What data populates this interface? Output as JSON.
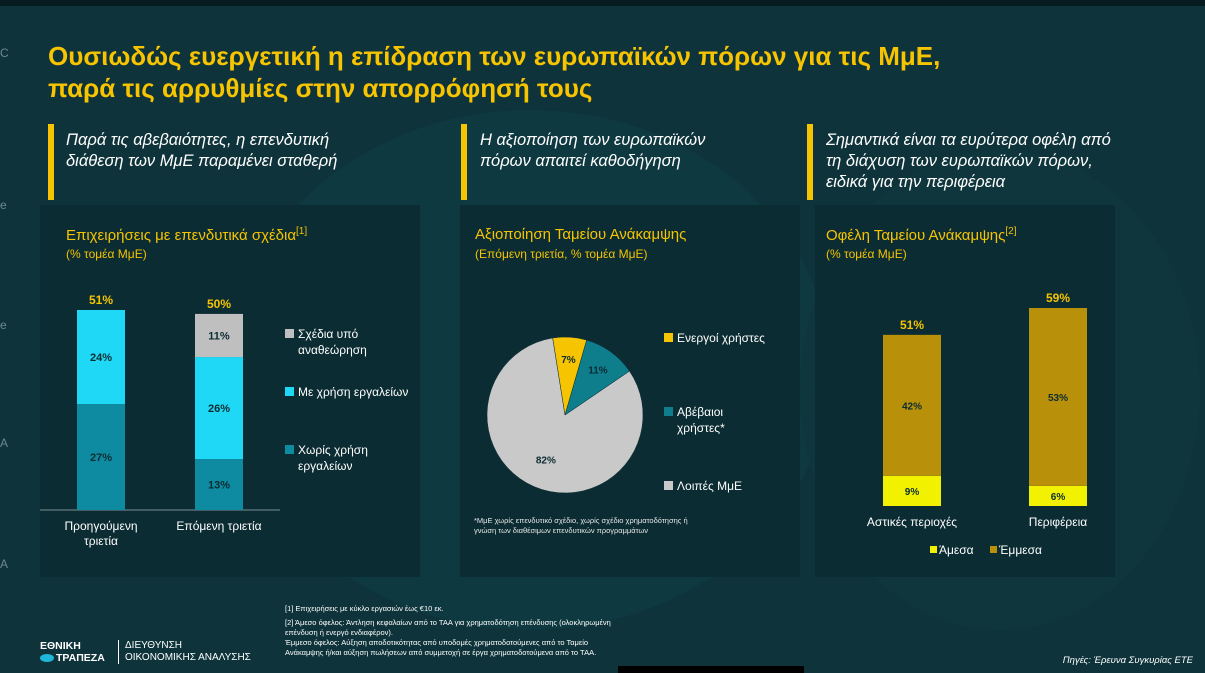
{
  "title": {
    "line1": "Ουσιωδώς ευεργετική η επίδραση των ευρωπαϊκών πόρων για τις ΜμΕ,",
    "line2": "παρά τις αρρυθμίες στην απορρόφησή τους"
  },
  "panels": [
    {
      "subtitle_line1": "Παρά τις αβεβαιότητες, η επενδυτική",
      "subtitle_line2": "διάθεση των ΜμΕ παραμένει σταθερή",
      "subtitle_line3": ""
    },
    {
      "subtitle_line1": "Η αξιοποίηση των ευρωπαϊκών",
      "subtitle_line2": "πόρων απαιτεί καθοδήγηση",
      "subtitle_line3": ""
    },
    {
      "subtitle_line1": "Σημαντικά είναι τα ευρύτερα οφέλη από",
      "subtitle_line2": "τη  διάχυση των ευρωπαϊκών πόρων,",
      "subtitle_line3": "ειδικά για την περιφέρεια"
    }
  ],
  "chart_data": [
    {
      "type": "bar",
      "stacked": true,
      "title": "Επιχειρήσεις με επενδυτικά σχέδια",
      "title_sup": "[1]",
      "unit": "(% τομέα ΜμΕ)",
      "categories": [
        "Προηγούμενη τριετία",
        "Επόμενη τριετία"
      ],
      "category_lines": [
        [
          "Προηγούμενη",
          "τριετία"
        ],
        [
          "Επόμενη τριετία"
        ]
      ],
      "totals": [
        51,
        50
      ],
      "total_labels": [
        "51%",
        "50%"
      ],
      "series": [
        {
          "name": "Χωρίς χρήση εργαλείων",
          "legend_lines": [
            "Χωρίς χρήση",
            "εργαλείων"
          ],
          "values": [
            27,
            13
          ],
          "labels": [
            "27%",
            "13%"
          ],
          "color": "#0e8ba1"
        },
        {
          "name": "Με χρήση εργαλείων",
          "legend_lines": [
            "Με χρήση εργαλείων"
          ],
          "values": [
            24,
            26
          ],
          "labels": [
            "24%",
            "26%"
          ],
          "color": "#1fd8f5"
        },
        {
          "name": "Σχέδια υπό αναθεώρηση",
          "legend_lines": [
            "Σχέδια υπό",
            "αναθεώρηση"
          ],
          "values": [
            0,
            11
          ],
          "labels": [
            "",
            "11%"
          ],
          "color": "#bfbfbf"
        }
      ],
      "ylim": [
        0,
        55
      ]
    },
    {
      "type": "pie",
      "title": "Αξιοποίηση Ταμείου Ανάκαμψης",
      "unit": "(Επόμενη τριετία, % τομέα ΜμΕ)",
      "slices": [
        {
          "name": "Ενεργοί χρήστες",
          "legend_lines": [
            "Ενεργοί χρήστες"
          ],
          "value": 7,
          "label": "7%",
          "color": "#f6c400"
        },
        {
          "name": "Αβέβαιοι χρήστες*",
          "legend_lines": [
            "Αβέβαιοι",
            "χρήστες*"
          ],
          "value": 11,
          "label": "11%",
          "color": "#0e7d8c"
        },
        {
          "name": "Λοιπές ΜμΕ",
          "legend_lines": [
            "Λοιπές ΜμΕ"
          ],
          "value": 82,
          "label": "82%",
          "color": "#c9c9c9"
        }
      ],
      "footnote_line1": "*ΜμΕ χωρίς επενδυτικό σχέδιο, χωρίς σχέδιο χρηματοδότησης ή",
      "footnote_line2": "γνώση των  διαθέσιμων επενδυτικών προγραμμάτων"
    },
    {
      "type": "bar",
      "stacked": true,
      "title": "Οφέλη Ταμείου Ανάκαμψης",
      "title_sup": "[2]",
      "unit": "(% τομέα ΜμΕ)",
      "categories": [
        "Αστικές περιοχές",
        "Περιφέρεια"
      ],
      "totals": [
        51,
        59
      ],
      "total_labels": [
        "51%",
        "59%"
      ],
      "series": [
        {
          "name": "Άμεσα",
          "values": [
            9,
            6
          ],
          "labels": [
            "9%",
            "6%"
          ],
          "color": "#f2f200"
        },
        {
          "name": "Έμμεσα",
          "values": [
            42,
            53
          ],
          "labels": [
            "42%",
            "53%"
          ],
          "color": "#b8900a"
        }
      ],
      "ylim": [
        0,
        62
      ]
    }
  ],
  "footnotes": {
    "f1": "[1]  Επιχειρήσεις με κύκλο εργασιών έως €10 εκ.",
    "f2a": "[2] Άμεσο όφελος: Άντληση κεφαλαίων από το ΤΑΑ για χρηματοδότηση επένδυσης (ολοκληρωμένη",
    "f2b": "επένδυση ή ενεργό ενδιαφέρον).",
    "f2c": "Έμμεσο όφελος: Αύξηση αποδοτικότητας από υποδομές χρηματοδοτούμενες από το Ταμείο",
    "f2d": "Ανάκαμψης ή/και αύξηση πωλήσεων από συμμετοχή σε έργα χρηματοδοτούμενα από το ΤΑΑ."
  },
  "logo": {
    "line1": "ΕΘΝΙΚΗ",
    "line2": "ΤΡΑΠΕΖΑ"
  },
  "dept": {
    "line1": "ΔΙΕΥΘΥΝΣΗ",
    "line2": "ΟΙΚΟΝΟΜΙΚΗΣ ΑΝΑΛΥΣΗΣ"
  },
  "source": "Πηγές: Έρευνα Συγκυρίας ΕΤΕ",
  "edge_glyphs": [
    "C",
    "e",
    "e",
    "A",
    "A"
  ]
}
